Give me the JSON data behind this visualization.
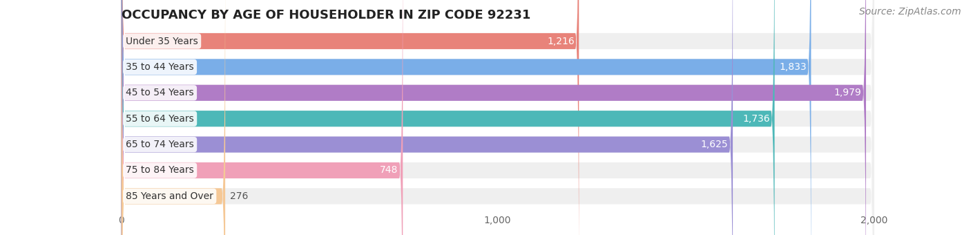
{
  "title": "OCCUPANCY BY AGE OF HOUSEHOLDER IN ZIP CODE 92231",
  "source": "Source: ZipAtlas.com",
  "categories": [
    "Under 35 Years",
    "35 to 44 Years",
    "45 to 54 Years",
    "55 to 64 Years",
    "65 to 74 Years",
    "75 to 84 Years",
    "85 Years and Over"
  ],
  "values": [
    1216,
    1833,
    1979,
    1736,
    1625,
    748,
    276
  ],
  "bar_colors": [
    "#e8837a",
    "#7aaee8",
    "#b07cc6",
    "#4db8b8",
    "#9b8fd4",
    "#f0a0b8",
    "#f5c896"
  ],
  "bar_bg_color": "#efefef",
  "xlim": [
    0,
    2000
  ],
  "xticks": [
    0,
    1000,
    2000
  ],
  "xtick_labels": [
    "0",
    "1,000",
    "2,000"
  ],
  "background_color": "#ffffff",
  "title_fontsize": 13,
  "label_fontsize": 10,
  "value_fontsize": 10,
  "source_fontsize": 10,
  "bar_height": 0.62,
  "value_label_color_inside": "#ffffff",
  "value_label_color_outside": "#555555"
}
